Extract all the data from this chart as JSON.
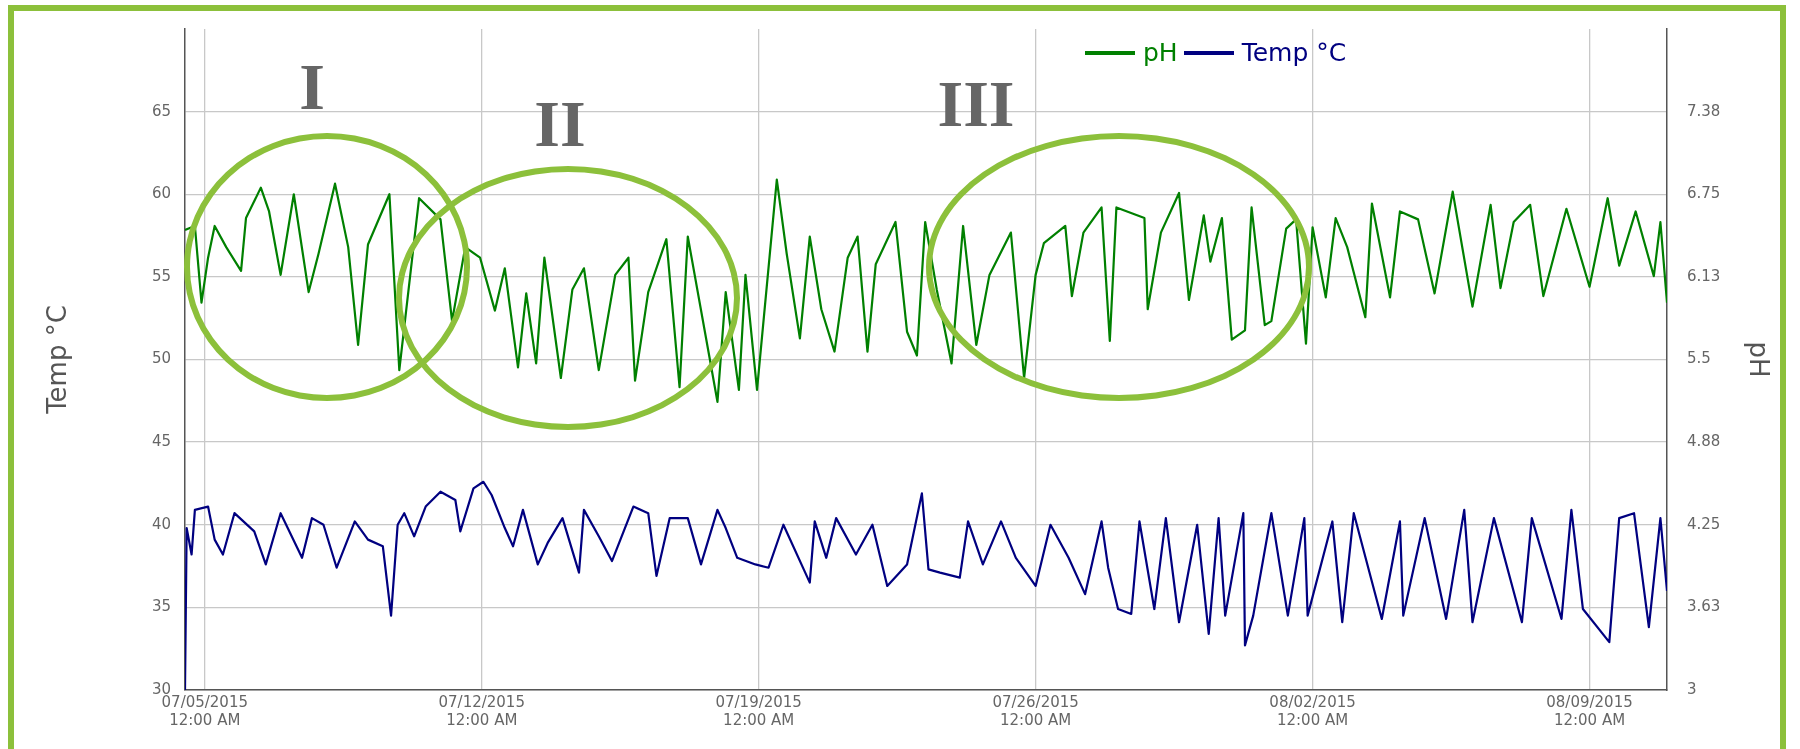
{
  "chart_data": {
    "type": "line",
    "ylabel": "Temp °C",
    "y2label": "pH",
    "grid": true,
    "legend": "top right",
    "xlim": [
      "2015-07-04T12:00",
      "2015-08-10T23:00"
    ],
    "xticks": [
      {
        "value": "2015-07-05T00:00",
        "label": "07/05/2015 12:00 AM"
      },
      {
        "value": "2015-07-12T00:00",
        "label": "07/12/2015 12:00 AM"
      },
      {
        "value": "2015-07-19T00:00",
        "label": "07/19/2015 12:00 AM"
      },
      {
        "value": "2015-07-26T00:00",
        "label": "07/26/2015 12:00 AM"
      },
      {
        "value": "2015-08-02T00:00",
        "label": "08/02/2015 12:00 AM"
      },
      {
        "value": "2015-08-09T00:00",
        "label": "08/09/2015 12:00 AM"
      }
    ],
    "ylim": [
      30,
      70
    ],
    "yticks": [
      30,
      35,
      40,
      45,
      50,
      55,
      60,
      65
    ],
    "y2lim": [
      3,
      8
    ],
    "y2ticks": [
      3,
      {
        "value": 3.625,
        "label": "3.63"
      },
      4.25,
      {
        "value": 4.875,
        "label": "4.88"
      },
      5.5,
      {
        "value": 6.125,
        "label": "6.13"
      },
      6.75,
      {
        "value": 7.375,
        "label": "7.38"
      }
    ],
    "annotations": [
      "I",
      "II",
      "III"
    ],
    "series": [
      {
        "name": "pH",
        "color": "#008000",
        "axis": "y2",
        "x": [
          "2015-07-04T12:00",
          "2015-07-04T18:00",
          "2015-07-04T22:00",
          "2015-07-05T02:00",
          "2015-07-05T06:00",
          "2015-07-05T13:00",
          "2015-07-05T22:00",
          "2015-07-06T01:00",
          "2015-07-06T10:00",
          "2015-07-06T15:00",
          "2015-07-06T22:00",
          "2015-07-07T06:00",
          "2015-07-07T15:00",
          "2015-07-07T21:00",
          "2015-07-08T07:00",
          "2015-07-08T15:00",
          "2015-07-08T21:00",
          "2015-07-09T03:00",
          "2015-07-09T16:00",
          "2015-07-09T22:00",
          "2015-07-10T10:00",
          "2015-07-10T23:00",
          "2015-07-11T06:00",
          "2015-07-11T14:00",
          "2015-07-11T23:00",
          "2015-07-12T08:00",
          "2015-07-12T14:00",
          "2015-07-12T22:00",
          "2015-07-13T03:00",
          "2015-07-13T09:00",
          "2015-07-13T14:00",
          "2015-07-14T00:00",
          "2015-07-14T07:00",
          "2015-07-14T14:00",
          "2015-07-14T23:00",
          "2015-07-15T09:00",
          "2015-07-15T17:00",
          "2015-07-15T21:00",
          "2015-07-16T05:00",
          "2015-07-16T16:00",
          "2015-07-17T00:00",
          "2015-07-17T05:00",
          "2015-07-17T23:00",
          "2015-07-18T04:00",
          "2015-07-18T12:00",
          "2015-07-18T16:00",
          "2015-07-18T23:00",
          "2015-07-19T11:00",
          "2015-07-19T17:00",
          "2015-07-20T01:00",
          "2015-07-20T07:00",
          "2015-07-20T14:00",
          "2015-07-20T22:00",
          "2015-07-21T06:00",
          "2015-07-21T12:00",
          "2015-07-21T18:00",
          "2015-07-21T23:00",
          "2015-07-22T11:00",
          "2015-07-22T18:00",
          "2015-07-23T00:00",
          "2015-07-23T05:00",
          "2015-07-23T12:00",
          "2015-07-23T21:00",
          "2015-07-24T04:00",
          "2015-07-24T12:00",
          "2015-07-24T20:00",
          "2015-07-25T09:00",
          "2015-07-25T17:00",
          "2015-07-26T00:00",
          "2015-07-26T05:00",
          "2015-07-26T18:00",
          "2015-07-26T22:00",
          "2015-07-27T05:00",
          "2015-07-27T16:00",
          "2015-07-27T21:00",
          "2015-07-28T01:00",
          "2015-07-28T18:00",
          "2015-07-28T20:00",
          "2015-07-29T04:00",
          "2015-07-29T15:00",
          "2015-07-29T21:00",
          "2015-07-30T06:00",
          "2015-07-30T10:00",
          "2015-07-30T17:00",
          "2015-07-30T23:00",
          "2015-07-31T07:00",
          "2015-07-31T11:00",
          "2015-07-31T19:00",
          "2015-07-31T23:00",
          "2015-08-01T08:00",
          "2015-08-01T14:00",
          "2015-08-01T20:00",
          "2015-08-02T00:00",
          "2015-08-02T08:00",
          "2015-08-02T14:00",
          "2015-08-02T21:00",
          "2015-08-03T08:00",
          "2015-08-03T12:00",
          "2015-08-03T23:00",
          "2015-08-04T05:00",
          "2015-08-04T16:00",
          "2015-08-05T02:00",
          "2015-08-05T13:00",
          "2015-08-06T01:00",
          "2015-08-06T12:00",
          "2015-08-06T18:00",
          "2015-08-07T02:00",
          "2015-08-07T12:00",
          "2015-08-07T20:00",
          "2015-08-08T10:00",
          "2015-08-09T00:00",
          "2015-08-09T11:00",
          "2015-08-09T18:00",
          "2015-08-10T04:00",
          "2015-08-10T15:00",
          "2015-08-10T19:00",
          "2015-08-10T23:00"
        ],
        "values": [
          6.48,
          6.51,
          5.93,
          6.27,
          6.51,
          6.35,
          6.17,
          6.57,
          6.8,
          6.62,
          6.14,
          6.75,
          6.01,
          6.3,
          6.83,
          6.35,
          5.61,
          6.37,
          6.75,
          5.42,
          6.72,
          6.56,
          5.79,
          6.35,
          6.27,
          5.87,
          6.19,
          5.44,
          6.0,
          5.47,
          6.27,
          5.36,
          6.03,
          6.19,
          5.42,
          6.14,
          6.27,
          5.34,
          6.01,
          6.41,
          5.29,
          6.43,
          5.18,
          6.01,
          5.27,
          6.14,
          5.27,
          6.86,
          6.3,
          5.66,
          6.43,
          5.88,
          5.56,
          6.27,
          6.43,
          5.56,
          6.22,
          6.54,
          5.71,
          5.53,
          6.54,
          6.03,
          5.47,
          6.51,
          5.61,
          6.14,
          6.46,
          5.36,
          6.14,
          6.38,
          6.51,
          5.98,
          6.46,
          6.65,
          5.64,
          6.65,
          6.57,
          5.88,
          6.46,
          6.76,
          5.95,
          6.59,
          6.24,
          6.57,
          5.65,
          5.72,
          6.65,
          5.76,
          5.79,
          6.49,
          6.56,
          5.62,
          6.5,
          5.97,
          6.57,
          6.35,
          5.82,
          6.68,
          5.97,
          6.62,
          6.56,
          6.0,
          6.77,
          5.9,
          6.67,
          6.04,
          6.54,
          6.67,
          5.98,
          6.64,
          6.05,
          6.72,
          6.21,
          6.62,
          6.13,
          6.54,
          5.93
        ]
      },
      {
        "name": "Temp °C",
        "color": "#000080",
        "x": [
          "2015-07-04T12:00",
          "2015-07-04T13:00",
          "2015-07-04T16:00",
          "2015-07-04T18:00",
          "2015-07-05T02:00",
          "2015-07-05T06:00",
          "2015-07-05T11:00",
          "2015-07-05T18:00",
          "2015-07-06T06:00",
          "2015-07-06T13:00",
          "2015-07-06T22:00",
          "2015-07-07T11:00",
          "2015-07-07T17:00",
          "2015-07-08T00:00",
          "2015-07-08T08:00",
          "2015-07-08T19:00",
          "2015-07-09T03:00",
          "2015-07-09T12:00",
          "2015-07-09T17:00",
          "2015-07-09T21:00",
          "2015-07-10T01:00",
          "2015-07-10T07:00",
          "2015-07-10T14:00",
          "2015-07-10T23:00",
          "2015-07-11T08:00",
          "2015-07-11T11:00",
          "2015-07-11T19:00",
          "2015-07-12T01:00",
          "2015-07-12T06:00",
          "2015-07-12T14:00",
          "2015-07-12T19:00",
          "2015-07-13T01:00",
          "2015-07-13T10:00",
          "2015-07-13T16:00",
          "2015-07-14T01:00",
          "2015-07-14T11:00",
          "2015-07-14T14:00",
          "2015-07-14T23:00",
          "2015-07-15T07:00",
          "2015-07-15T20:00",
          "2015-07-16T05:00",
          "2015-07-16T10:00",
          "2015-07-16T18:00",
          "2015-07-17T05:00",
          "2015-07-17T13:00",
          "2015-07-17T23:00",
          "2015-07-18T04:00",
          "2015-07-18T11:00",
          "2015-07-18T22:00",
          "2015-07-19T06:00",
          "2015-07-19T15:00",
          "2015-07-20T07:00",
          "2015-07-20T10:00",
          "2015-07-20T17:00",
          "2015-07-20T23:00",
          "2015-07-21T11:00",
          "2015-07-21T21:00",
          "2015-07-22T06:00",
          "2015-07-22T18:00",
          "2015-07-23T03:00",
          "2015-07-23T07:00",
          "2015-07-23T14:00",
          "2015-07-24T02:00",
          "2015-07-24T07:00",
          "2015-07-24T16:00",
          "2015-07-25T03:00",
          "2015-07-25T12:00",
          "2015-07-26T00:00",
          "2015-07-26T09:00",
          "2015-07-26T20:00",
          "2015-07-27T06:00",
          "2015-07-27T16:00",
          "2015-07-27T20:00",
          "2015-07-28T02:00",
          "2015-07-28T10:00",
          "2015-07-28T15:00",
          "2015-07-29T00:00",
          "2015-07-29T07:00",
          "2015-07-29T15:00",
          "2015-07-30T02:00",
          "2015-07-30T09:00",
          "2015-07-30T15:00",
          "2015-07-30T19:00",
          "2015-07-31T06:00",
          "2015-07-31T07:00",
          "2015-07-31T12:00",
          "2015-07-31T23:00",
          "2015-08-01T09:00",
          "2015-08-01T19:00",
          "2015-08-01T21:00",
          "2015-08-02T12:00",
          "2015-08-02T18:00",
          "2015-08-03T01:00",
          "2015-08-03T18:00",
          "2015-08-04T05:00",
          "2015-08-04T07:00",
          "2015-08-04T20:00",
          "2015-08-05T09:00",
          "2015-08-05T20:00",
          "2015-08-06T01:00",
          "2015-08-06T14:00",
          "2015-08-07T07:00",
          "2015-08-07T13:00",
          "2015-08-08T07:00",
          "2015-08-08T13:00",
          "2015-08-08T20:00",
          "2015-08-09T12:00",
          "2015-08-09T18:00",
          "2015-08-10T03:00",
          "2015-08-10T12:00",
          "2015-08-10T19:00",
          "2015-08-10T23:00"
        ],
        "values": [
          30,
          39.8,
          38.2,
          40.9,
          41.1,
          39.1,
          38.2,
          40.7,
          39.6,
          37.6,
          40.7,
          38.0,
          40.4,
          40.0,
          37.4,
          40.2,
          39.1,
          38.7,
          34.5,
          40.0,
          40.7,
          39.3,
          41.1,
          42.0,
          41.5,
          39.6,
          42.2,
          42.6,
          41.8,
          39.8,
          38.7,
          40.9,
          37.6,
          38.9,
          40.4,
          37.1,
          40.9,
          39.3,
          37.8,
          41.1,
          40.7,
          36.9,
          40.4,
          40.4,
          37.6,
          40.9,
          39.8,
          38.0,
          37.6,
          37.4,
          40.0,
          36.5,
          40.2,
          38.0,
          40.4,
          38.2,
          40.0,
          36.3,
          37.6,
          41.9,
          37.3,
          37.1,
          36.8,
          40.2,
          37.6,
          40.2,
          38.0,
          36.3,
          40.0,
          38.0,
          35.8,
          40.2,
          37.4,
          34.9,
          34.6,
          40.2,
          34.9,
          40.4,
          34.1,
          40.0,
          33.4,
          40.4,
          34.5,
          40.7,
          32.7,
          34.5,
          40.7,
          34.5,
          40.4,
          34.5,
          40.2,
          34.1,
          40.7,
          34.3,
          40.2,
          34.5,
          40.4,
          34.3,
          40.9,
          34.1,
          40.4,
          34.1,
          40.4,
          34.3,
          40.9,
          34.9,
          32.9,
          40.4,
          40.7,
          33.8,
          40.4,
          36.0
        ]
      }
    ]
  }
}
